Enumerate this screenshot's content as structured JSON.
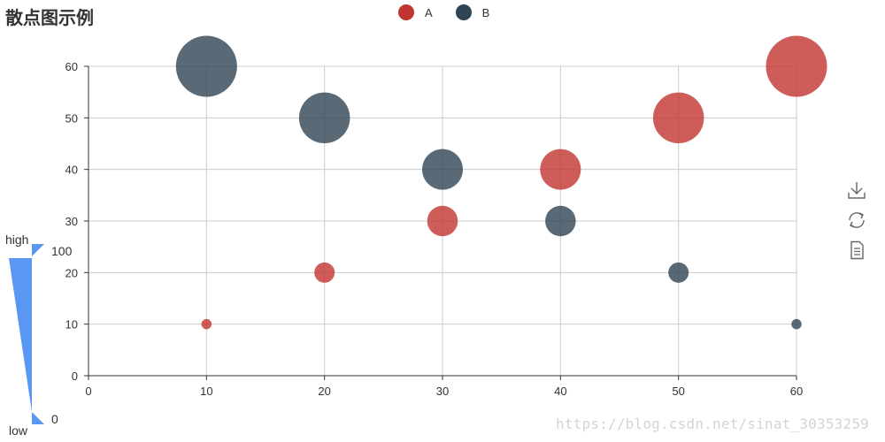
{
  "title": "散点图示例",
  "legend": [
    {
      "name": "A",
      "color": "#c23531"
    },
    {
      "name": "B",
      "color": "#2f4554"
    }
  ],
  "visual_map": {
    "high_label": "high",
    "low_label": "low",
    "max_text": "100",
    "min_text": "0",
    "color": "#5a97f2"
  },
  "toolbox": {
    "icons": [
      "save-as-image-icon",
      "restore-icon",
      "data-view-icon"
    ]
  },
  "watermark": "https://blog.csdn.net/sinat_30353259",
  "chart_data": {
    "type": "scatter",
    "title": "散点图示例",
    "xlim": [
      0,
      60
    ],
    "ylim": [
      0,
      60
    ],
    "xticks": [
      0,
      10,
      20,
      30,
      40,
      50,
      60
    ],
    "yticks": [
      0,
      10,
      20,
      30,
      40,
      50,
      60
    ],
    "grid": true,
    "legend_position": "top-center",
    "series": [
      {
        "name": "A",
        "color": "#c23531",
        "points": [
          [
            10,
            10
          ],
          [
            20,
            20
          ],
          [
            30,
            30
          ],
          [
            40,
            40
          ],
          [
            50,
            50
          ],
          [
            60,
            60
          ]
        ]
      },
      {
        "name": "B",
        "color": "#2f4554",
        "points": [
          [
            10,
            60
          ],
          [
            20,
            50
          ],
          [
            30,
            40
          ],
          [
            40,
            30
          ],
          [
            50,
            20
          ],
          [
            60,
            10
          ]
        ]
      }
    ]
  }
}
